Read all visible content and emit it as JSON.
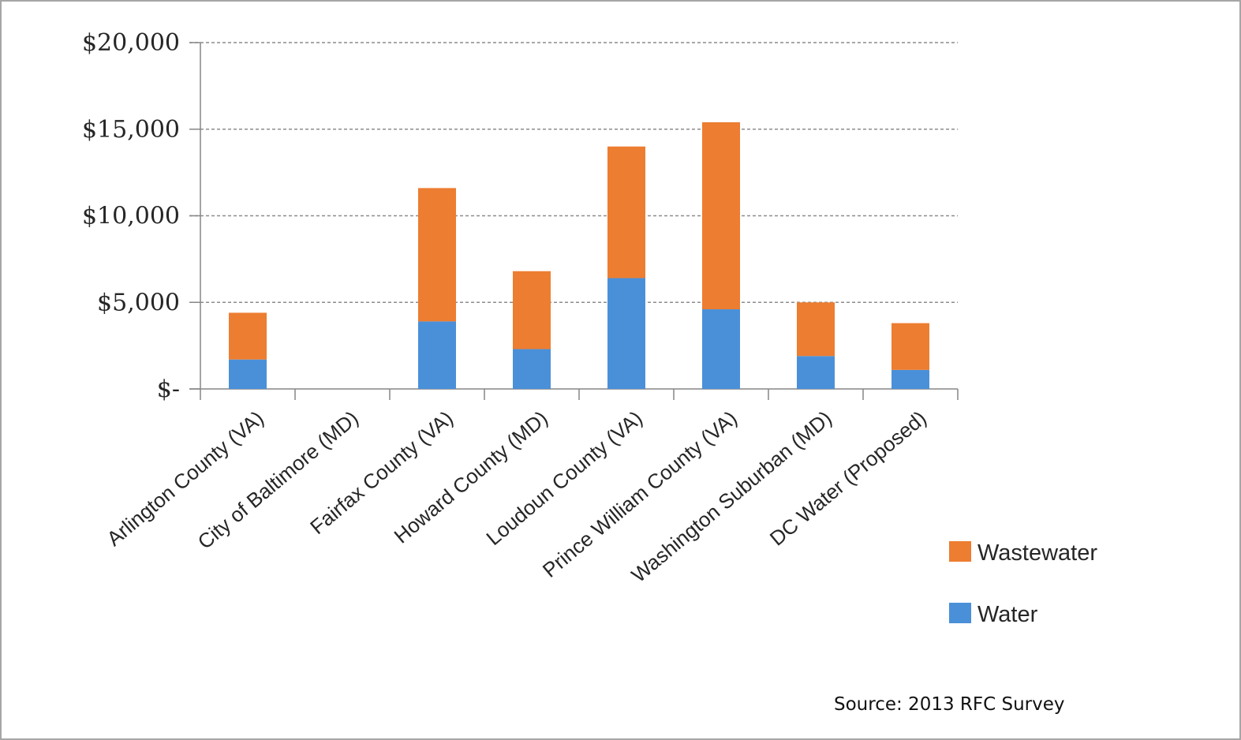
{
  "chart_data": {
    "type": "bar",
    "stacked": true,
    "categories": [
      "Arlington County (VA)",
      "City of Baltimore (MD)",
      "Fairfax County (VA)",
      "Howard County (MD)",
      "Loudoun County (VA)",
      "Prince William County (VA)",
      "Washington Suburban (MD)",
      "DC Water (Proposed)"
    ],
    "series": [
      {
        "name": "Water",
        "color": "#4a90d9",
        "values": [
          1700,
          0,
          3900,
          2300,
          6400,
          4600,
          1900,
          1100
        ]
      },
      {
        "name": "Wastewater",
        "color": "#ed7d31",
        "values": [
          2700,
          0,
          7700,
          4500,
          7600,
          10800,
          3100,
          2700
        ]
      }
    ],
    "yticks": [
      {
        "value": 0,
        "label": "$-"
      },
      {
        "value": 5000,
        "label": "$5,000"
      },
      {
        "value": 10000,
        "label": "$10,000"
      },
      {
        "value": 15000,
        "label": "$15,000"
      },
      {
        "value": 20000,
        "label": "$20,000"
      }
    ],
    "ylim": [
      0,
      20000
    ],
    "grid": "horizontal-dashed",
    "legend_position": "right",
    "legend_order": [
      "Wastewater",
      "Water"
    ],
    "title": "",
    "xlabel": "",
    "ylabel": ""
  },
  "source_text": "Source: 2013 RFC Survey",
  "colors": {
    "axis": "#868686",
    "grid": "#8c8c8c"
  }
}
